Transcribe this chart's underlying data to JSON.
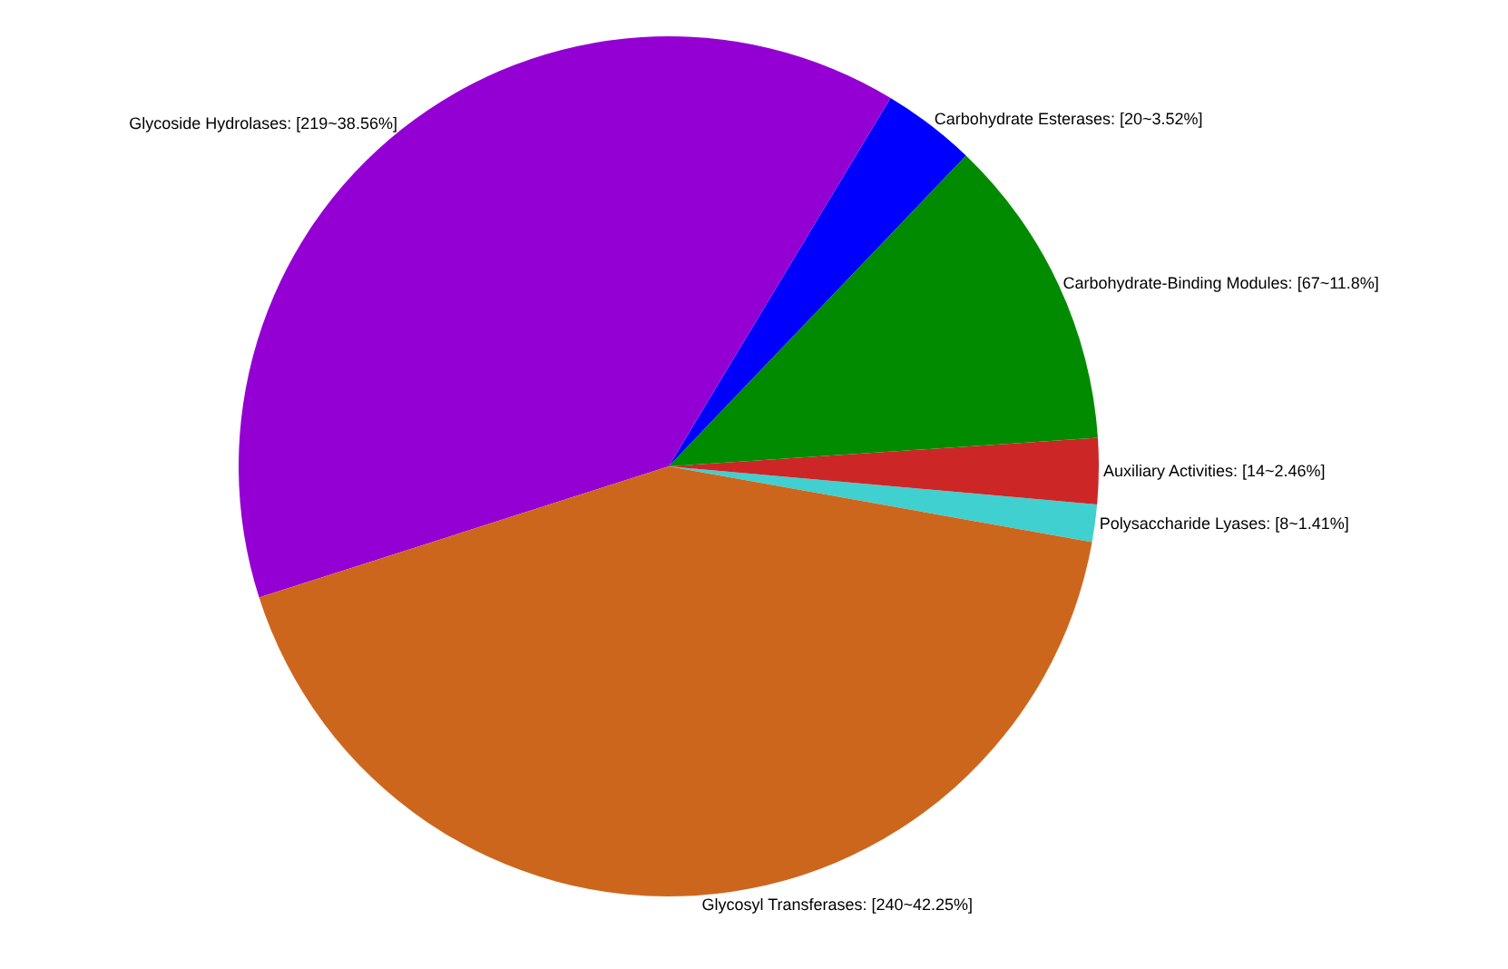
{
  "chart_data": {
    "type": "pie",
    "categories": [
      "Polysaccharide Lyases: [8~1.41%]",
      "Auxiliary Activities: [14~2.46%]",
      "Carbohydrate-Binding Modules: [67~11.8%]",
      "Carbohydrate Esterases: [20~3.52%]",
      "Glycoside Hydrolases: [219~38.56%]",
      "Glycosyl Transferases: [240~42.25%]"
    ],
    "values": [
      8,
      14,
      67,
      20,
      219,
      240
    ],
    "colors": [
      "#40d0d0",
      "#cd2626",
      "#008b00",
      "#0000ff",
      "#9400d3",
      "#cd661d"
    ],
    "legend": false
  }
}
